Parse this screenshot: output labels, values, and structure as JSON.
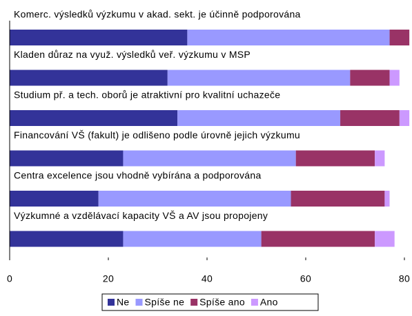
{
  "chart_data": {
    "type": "stacked-bar-horizontal",
    "categories": [
      "Komerc. výsledků výzkumu v akad. sekt. je účinně podporována",
      "Kladen důraz na využ. výsledků veř. výzkumu v MSP",
      "Studium př. a tech. oborů je atraktivní pro kvalitní uchazeče",
      "Financování VŠ (fakult) je odlišeno podle úrovně jejich výzkumu",
      "Centra excelence jsou vhodně vybírána a podporována",
      "Výzkumné a vzdělávací kapacity VŠ a AV jsou propojeny"
    ],
    "series": [
      {
        "name": "Ne",
        "color": "#333399",
        "values": [
          36,
          32,
          34,
          23,
          18,
          23
        ]
      },
      {
        "name": "Spíše ne",
        "color": "#9999ff",
        "values": [
          41,
          37,
          33,
          35,
          39,
          28
        ]
      },
      {
        "name": "Spíše ano",
        "color": "#993366",
        "values": [
          4,
          8,
          12,
          16,
          19,
          23
        ]
      },
      {
        "name": "Ano",
        "color": "#cc99ff",
        "values": [
          0,
          2,
          2,
          2,
          1,
          4
        ]
      }
    ],
    "xlim": [
      0,
      80
    ],
    "xticks": [
      0,
      20,
      40,
      60,
      80
    ],
    "legend": "bottom"
  }
}
